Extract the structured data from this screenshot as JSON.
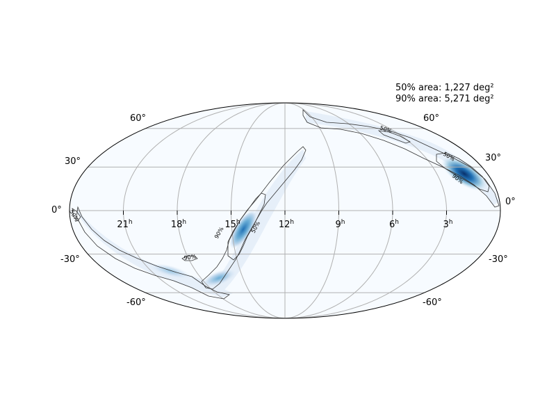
{
  "map": {
    "projection": "mollweide",
    "colormap": "Blues",
    "grid": true,
    "credible_areas": [
      {
        "label": "50% area: 1,227 deg²"
      },
      {
        "label": "90% area: 5,271 deg²"
      }
    ],
    "latitude_labels": [
      "60°",
      "30°",
      "0°",
      "-30°",
      "-60°"
    ],
    "ra_labels": [
      {
        "hours": "21",
        "unit": "h"
      },
      {
        "hours": "18",
        "unit": "h"
      },
      {
        "hours": "15",
        "unit": "h"
      },
      {
        "hours": "12",
        "unit": "h"
      },
      {
        "hours": "9",
        "unit": "h"
      },
      {
        "hours": "6",
        "unit": "h"
      },
      {
        "hours": "3",
        "unit": "h"
      }
    ],
    "contour_labels": {
      "c50": "50%",
      "c90": "90%"
    }
  }
}
